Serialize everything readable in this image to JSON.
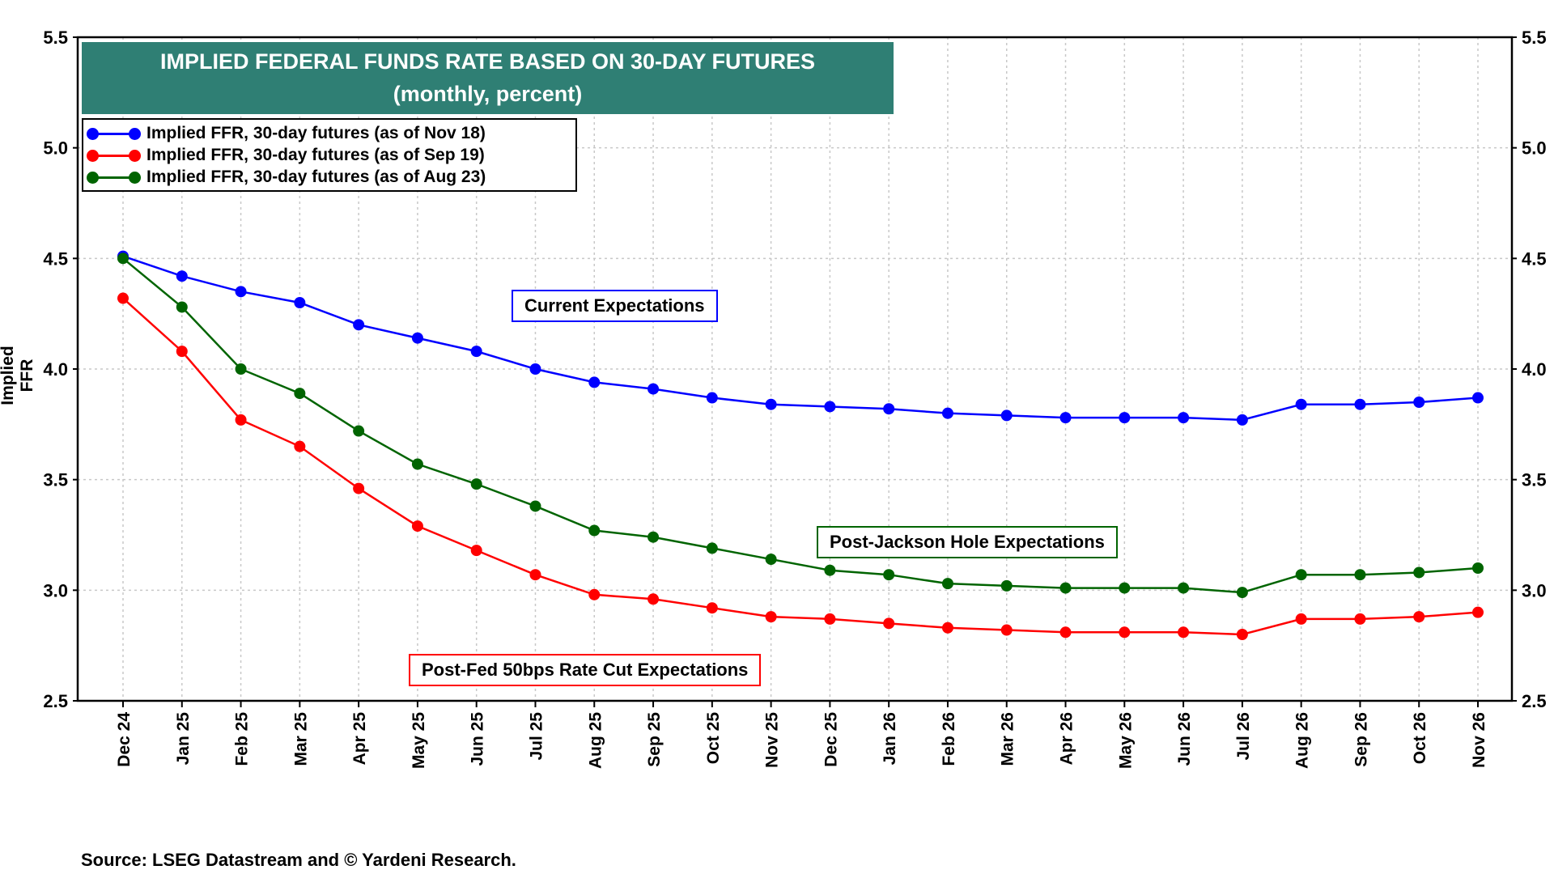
{
  "chart_data": {
    "type": "line",
    "title": "IMPLIED FEDERAL FUNDS RATE BASED ON 30-DAY FUTURES",
    "subtitle": "(monthly, percent)",
    "ylabel": "Implied FFR",
    "xlabel": "",
    "ylim": [
      2.5,
      5.5
    ],
    "yticks": [
      "2.5",
      "3.0",
      "3.5",
      "4.0",
      "4.5",
      "5.0",
      "5.5"
    ],
    "grid": true,
    "legend_position": "top-left",
    "categories": [
      "Dec 24",
      "Jan 25",
      "Feb 25",
      "Mar 25",
      "Apr 25",
      "May 25",
      "Jun 25",
      "Jul 25",
      "Aug 25",
      "Sep 25",
      "Oct 25",
      "Nov 25",
      "Dec 25",
      "Jan 26",
      "Feb 26",
      "Mar 26",
      "Apr 26",
      "May 26",
      "Jun 26",
      "Jul 26",
      "Aug 26",
      "Sep 26",
      "Oct 26",
      "Nov 26"
    ],
    "series": [
      {
        "name": "Implied FFR, 30-day futures (as of Nov 18)",
        "color": "#0000ff",
        "values": [
          4.51,
          4.42,
          4.35,
          4.3,
          4.2,
          4.14,
          4.08,
          4.0,
          3.94,
          3.91,
          3.87,
          3.84,
          3.83,
          3.82,
          3.8,
          3.79,
          3.78,
          3.78,
          3.78,
          3.77,
          3.84,
          3.84,
          3.85,
          3.87
        ]
      },
      {
        "name": "Implied FFR, 30-day futures (as of Sep 19)",
        "color": "#ff0000",
        "values": [
          4.32,
          4.08,
          3.77,
          3.65,
          3.46,
          3.29,
          3.18,
          3.07,
          2.98,
          2.96,
          2.92,
          2.88,
          2.87,
          2.85,
          2.83,
          2.82,
          2.81,
          2.81,
          2.81,
          2.8,
          2.87,
          2.87,
          2.88,
          2.9
        ]
      },
      {
        "name": "Implied FFR, 30-day futures (as of Aug 23)",
        "color": "#006400",
        "values": [
          4.5,
          4.28,
          4.0,
          3.89,
          3.72,
          3.57,
          3.48,
          3.38,
          3.27,
          3.24,
          3.19,
          3.14,
          3.09,
          3.07,
          3.03,
          3.02,
          3.01,
          3.01,
          3.01,
          2.99,
          3.07,
          3.07,
          3.08,
          3.1
        ]
      }
    ],
    "annotations": [
      {
        "text": "Current Expectations",
        "color": "#0000ff"
      },
      {
        "text": "Post-Jackson Hole Expectations",
        "color": "#006400"
      },
      {
        "text": "Post-Fed 50bps Rate Cut Expectations",
        "color": "#ff0000"
      }
    ],
    "source": "Source: LSEG Datastream and © Yardeni Research."
  }
}
